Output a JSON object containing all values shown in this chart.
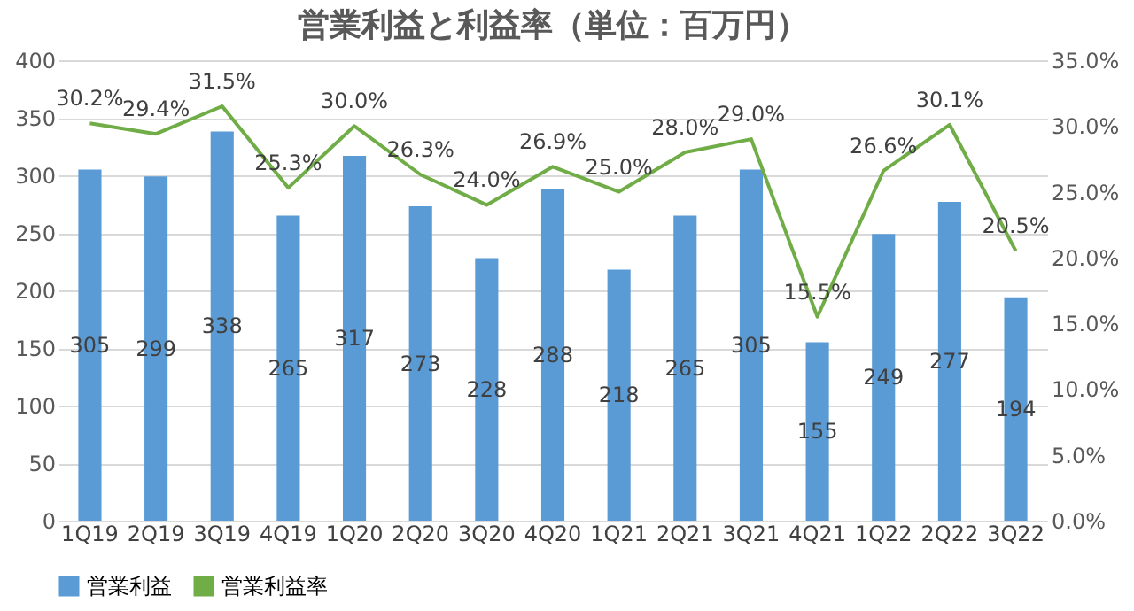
{
  "chart_data": {
    "type": "bar",
    "title": "営業利益と利益率（単位：百万円）",
    "categories": [
      "1Q19",
      "2Q19",
      "3Q19",
      "4Q19",
      "1Q20",
      "2Q20",
      "3Q20",
      "4Q20",
      "1Q21",
      "2Q21",
      "3Q21",
      "4Q21",
      "1Q22",
      "2Q22",
      "3Q22"
    ],
    "series": [
      {
        "name": "営業利益",
        "color": "#5b9bd5",
        "values": [
          305,
          299,
          338,
          265,
          317,
          273,
          228,
          288,
          218,
          265,
          305,
          155,
          249,
          277,
          194
        ],
        "value_labels": [
          "305",
          "299",
          "338",
          "265",
          "317",
          "273",
          "228",
          "288",
          "218",
          "265",
          "305",
          "155",
          "249",
          "277",
          "194"
        ]
      },
      {
        "name": "営業利益率",
        "type": "line",
        "axis": "y2",
        "color": "#70ad47",
        "values": [
          30.2,
          29.4,
          31.5,
          25.3,
          30.0,
          26.3,
          24.0,
          26.9,
          25.0,
          28.0,
          29.0,
          15.5,
          26.6,
          30.1,
          20.5
        ],
        "value_labels": [
          "30.2%",
          "29.4%",
          "31.5%",
          "25.3%",
          "30.0%",
          "26.3%",
          "24.0%",
          "26.9%",
          "25.0%",
          "28.0%",
          "29.0%",
          "15.5%",
          "26.6%",
          "30.1%",
          "20.5%"
        ]
      }
    ],
    "ylim": [
      0,
      400
    ],
    "yticks": [
      0,
      50,
      100,
      150,
      200,
      250,
      300,
      350,
      400
    ],
    "y2lim": [
      0,
      35
    ],
    "y2ticks": [
      {
        "value": 0,
        "label": "0.0%"
      },
      {
        "value": 5,
        "label": "5.0%"
      },
      {
        "value": 10,
        "label": "10.0%"
      },
      {
        "value": 15,
        "label": "15.0%"
      },
      {
        "value": 20,
        "label": "20.0%"
      },
      {
        "value": 25,
        "label": "25.0%"
      },
      {
        "value": 30,
        "label": "30.0%"
      },
      {
        "value": 35,
        "label": "35.0%"
      }
    ],
    "grid": "y",
    "legend": "bottom"
  }
}
